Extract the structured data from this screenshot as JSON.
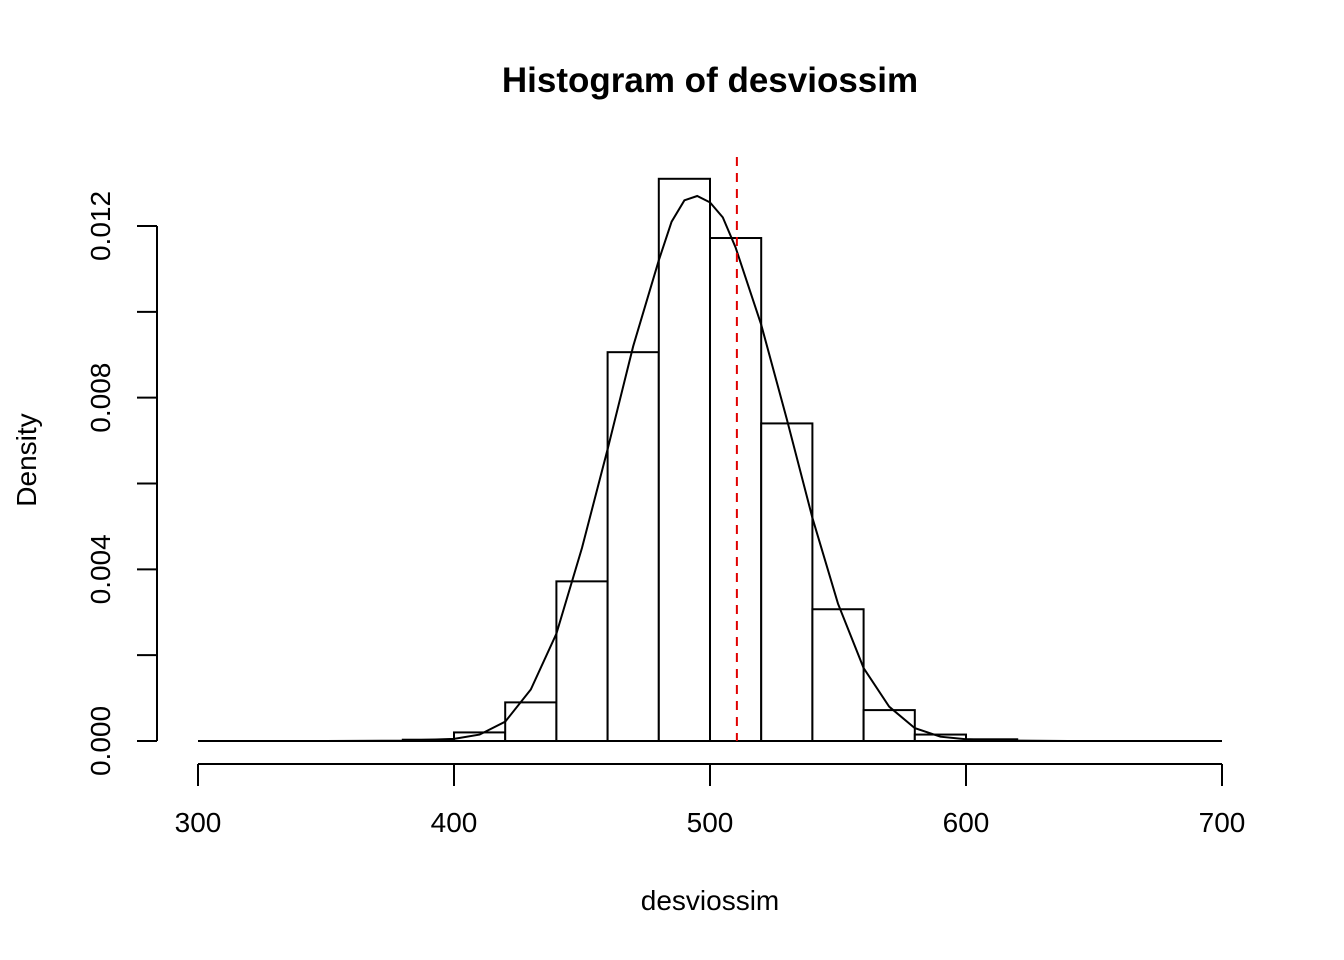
{
  "chart_data": {
    "type": "bar",
    "title": "Histogram of desviossim",
    "xlabel": "desviossim",
    "ylabel": "Density",
    "xlim": [
      300,
      700
    ],
    "ylim": [
      0,
      0.012
    ],
    "x_ticks": [
      "300",
      "400",
      "500",
      "600",
      "700"
    ],
    "y_ticks": [
      "0.000",
      "0.004",
      "0.008",
      "0.012"
    ],
    "y_minor_ticks": [
      0.002,
      0.006,
      0.01
    ],
    "bins": [
      {
        "start": 380,
        "end": 400,
        "density": 3e-05
      },
      {
        "start": 400,
        "end": 420,
        "density": 0.0002
      },
      {
        "start": 420,
        "end": 440,
        "density": 0.0009
      },
      {
        "start": 440,
        "end": 460,
        "density": 0.00372
      },
      {
        "start": 460,
        "end": 480,
        "density": 0.00906
      },
      {
        "start": 480,
        "end": 500,
        "density": 0.0131
      },
      {
        "start": 500,
        "end": 520,
        "density": 0.01172
      },
      {
        "start": 520,
        "end": 540,
        "density": 0.0074
      },
      {
        "start": 540,
        "end": 560,
        "density": 0.00307
      },
      {
        "start": 560,
        "end": 580,
        "density": 0.00072
      },
      {
        "start": 580,
        "end": 600,
        "density": 0.00015
      },
      {
        "start": 600,
        "end": 620,
        "density": 4e-05
      }
    ],
    "density_curve": {
      "type": "line",
      "x": [
        300,
        350,
        380,
        400,
        410,
        420,
        430,
        440,
        450,
        460,
        470,
        480,
        485,
        490,
        495,
        500,
        505,
        510,
        520,
        530,
        540,
        550,
        560,
        570,
        580,
        590,
        600,
        610,
        620,
        640,
        660,
        700
      ],
      "y": [
        0,
        0,
        1e-05,
        5e-05,
        0.00015,
        0.00045,
        0.0012,
        0.0025,
        0.0045,
        0.0068,
        0.0092,
        0.0112,
        0.0121,
        0.0126,
        0.0127,
        0.01255,
        0.0122,
        0.0115,
        0.0097,
        0.0075,
        0.0052,
        0.0032,
        0.0017,
        0.0008,
        0.0003,
        0.0001,
        4e-05,
        2e-05,
        1e-05,
        0,
        0,
        0
      ]
    },
    "reference_line": {
      "x": 510.5,
      "color": "#e00000",
      "style": "dashed"
    },
    "grid": false
  }
}
